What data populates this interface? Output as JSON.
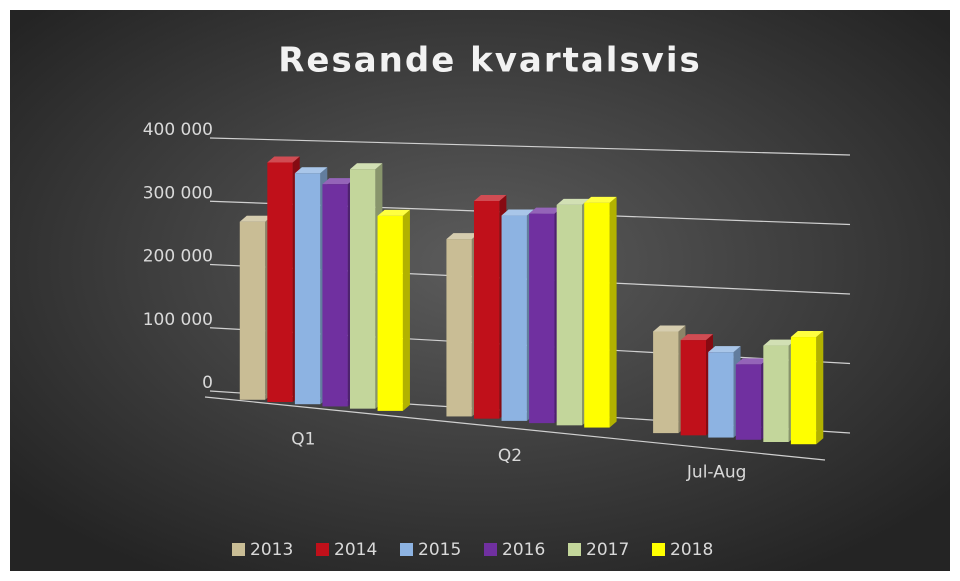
{
  "chart_data": {
    "type": "bar3d",
    "title": "Resande kvartalsvis",
    "categories": [
      "Q1",
      "Q2",
      "Jul-Aug"
    ],
    "series": [
      {
        "name": "2013",
        "color": "#c9bd95",
        "values": [
          280000,
          270000,
          150000
        ]
      },
      {
        "name": "2014",
        "color": "#c0101a",
        "values": [
          375000,
          330000,
          140000
        ]
      },
      {
        "name": "2015",
        "color": "#8db3e2",
        "values": [
          360000,
          310000,
          125000
        ]
      },
      {
        "name": "2016",
        "color": "#7030a0",
        "values": [
          345000,
          315000,
          110000
        ]
      },
      {
        "name": "2017",
        "color": "#c3d69b",
        "values": [
          370000,
          330000,
          140000
        ]
      },
      {
        "name": "2018",
        "color": "#ffff00",
        "values": [
          300000,
          335000,
          155000
        ]
      }
    ],
    "ylim": [
      0,
      400000
    ],
    "yticks": [
      {
        "value": 0,
        "label": "0"
      },
      {
        "value": 100000,
        "label": "100 000"
      },
      {
        "value": 200000,
        "label": "200 000"
      },
      {
        "value": 300000,
        "label": "300 000"
      },
      {
        "value": 400000,
        "label": "400 000"
      }
    ],
    "grid": true,
    "legend": "bottom"
  }
}
